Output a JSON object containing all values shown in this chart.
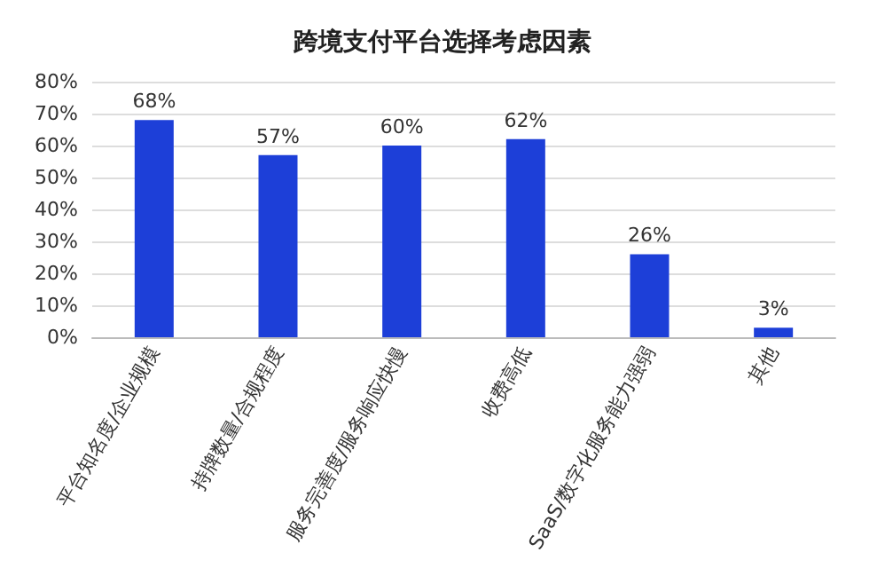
{
  "chart_data": {
    "type": "bar",
    "title": "跨境支付平台选择考虑因素",
    "categories": [
      "平台知名度/企业规模",
      "持牌数量/合规程度",
      "服务完善度/服务响应快慢",
      "收费高低",
      "SaaS/数字化服务能力强弱",
      "其他"
    ],
    "values": [
      68,
      57,
      60,
      62,
      26,
      3
    ],
    "value_labels": [
      "68%",
      "57%",
      "60%",
      "62%",
      "26%",
      "3%"
    ],
    "color": "#1d3fd8",
    "ylim": [
      0,
      80
    ],
    "yticks": [
      {
        "value": 0,
        "label": "0%"
      },
      {
        "value": 10,
        "label": "10%"
      },
      {
        "value": 20,
        "label": "20%"
      },
      {
        "value": 30,
        "label": "30%"
      },
      {
        "value": 40,
        "label": "40%"
      },
      {
        "value": 50,
        "label": "50%"
      },
      {
        "value": 60,
        "label": "60%"
      },
      {
        "value": 70,
        "label": "70%"
      },
      {
        "value": 80,
        "label": "80%"
      }
    ],
    "grid": "y"
  }
}
